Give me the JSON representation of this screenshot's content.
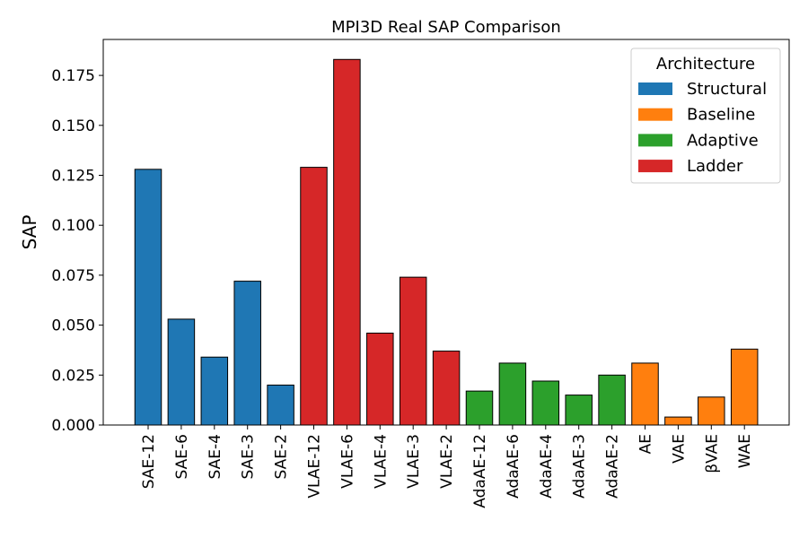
{
  "chart_data": {
    "type": "bar",
    "title": "MPI3D Real SAP Comparison",
    "xlabel": "",
    "ylabel": "SAP",
    "ylim": [
      0,
      0.193
    ],
    "yticks": [
      "0.000",
      "0.025",
      "0.050",
      "0.075",
      "0.100",
      "0.125",
      "0.150",
      "0.175"
    ],
    "categories": [
      "SAE-12",
      "SAE-6",
      "SAE-4",
      "SAE-3",
      "SAE-2",
      "VLAE-12",
      "VLAE-6",
      "VLAE-4",
      "VLAE-3",
      "VLAE-2",
      "AdaAE-12",
      "AdaAE-6",
      "AdaAE-4",
      "AdaAE-3",
      "AdaAE-2",
      "AE",
      "VAE",
      "βVAE",
      "WAE"
    ],
    "values": [
      0.128,
      0.053,
      0.034,
      0.072,
      0.02,
      0.129,
      0.183,
      0.046,
      0.074,
      0.037,
      0.017,
      0.031,
      0.022,
      0.015,
      0.025,
      0.031,
      0.004,
      0.014,
      0.038
    ],
    "groups": [
      "Structural",
      "Structural",
      "Structural",
      "Structural",
      "Structural",
      "Ladder",
      "Ladder",
      "Ladder",
      "Ladder",
      "Ladder",
      "Adaptive",
      "Adaptive",
      "Adaptive",
      "Adaptive",
      "Adaptive",
      "Baseline",
      "Baseline",
      "Baseline",
      "Baseline"
    ],
    "legend": {
      "title": "Architecture",
      "placement": "top-right",
      "entries": [
        {
          "name": "Structural",
          "color": "#1f77b4"
        },
        {
          "name": "Baseline",
          "color": "#ff7f0e"
        },
        {
          "name": "Adaptive",
          "color": "#2ca02c"
        },
        {
          "name": "Ladder",
          "color": "#d62728"
        }
      ]
    },
    "grid": false
  }
}
